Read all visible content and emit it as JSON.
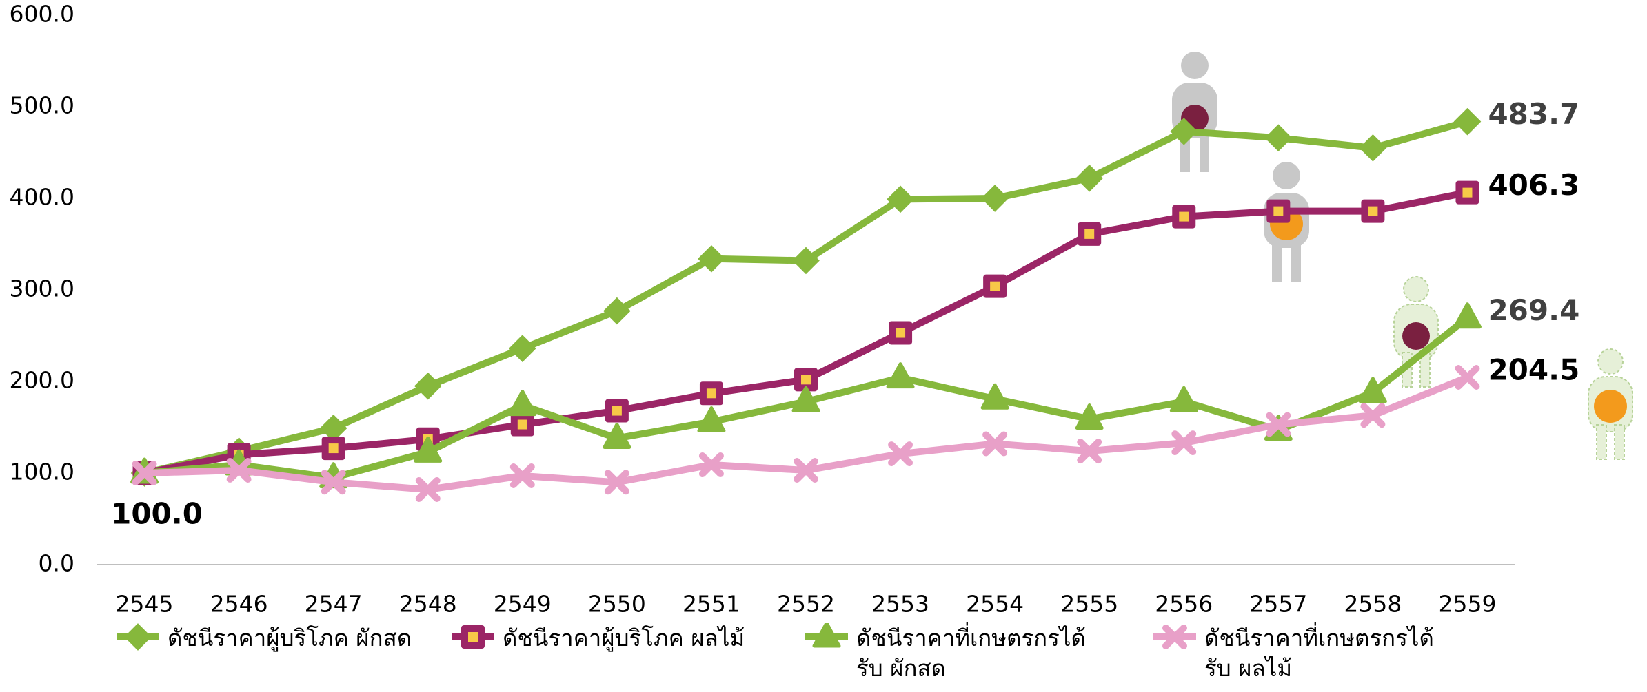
{
  "chart_data": {
    "type": "line",
    "categories": [
      "2545",
      "2546",
      "2547",
      "2548",
      "2549",
      "2550",
      "2551",
      "2552",
      "2553",
      "2554",
      "2555",
      "2556",
      "2557",
      "2558",
      "2559"
    ],
    "ylim": [
      0,
      600
    ],
    "yticks": [
      {
        "value": 0,
        "label": "0.0"
      },
      {
        "value": 100,
        "label": "100.0"
      },
      {
        "value": 200,
        "label": "200.0"
      },
      {
        "value": 300,
        "label": "300.0"
      },
      {
        "value": 400,
        "label": "400.0"
      },
      {
        "value": 500,
        "label": "500.0"
      },
      {
        "value": 600,
        "label": "600.0"
      }
    ],
    "grid": false,
    "legend": "bottom",
    "series": [
      {
        "name": "ดัชนีราคาผู้บริโภค ผักสด",
        "color": "#86b83c",
        "marker": "diamond",
        "values": [
          100,
          124,
          149,
          195,
          236,
          277,
          334,
          332,
          399,
          400,
          422,
          473,
          466,
          455,
          483.7
        ],
        "value_labels": [
          null,
          null,
          null,
          null,
          null,
          null,
          null,
          null,
          null,
          null,
          null,
          null,
          null,
          null,
          "483.7"
        ],
        "label_color": "#404040"
      },
      {
        "name": "ดัชนีราคาผู้บริโภค ผลไม้",
        "color": "#9b2566",
        "marker": "square",
        "values": [
          100,
          120,
          127,
          137,
          153,
          168,
          187,
          202,
          253,
          304,
          361,
          380,
          386,
          386,
          406.3
        ],
        "value_labels": [
          "100.0",
          null,
          null,
          null,
          null,
          null,
          null,
          null,
          null,
          null,
          null,
          null,
          null,
          null,
          "406.3"
        ],
        "label_color": "#000000"
      },
      {
        "name": "ดัชนีราคาที่เกษตรกรได้รับ ผักสด",
        "color": "#86b83c",
        "marker": "triangle",
        "values": [
          100,
          109,
          95,
          123,
          174,
          138,
          156,
          178,
          204,
          181,
          159,
          178,
          147,
          188,
          269.4
        ],
        "value_labels": [
          null,
          null,
          null,
          null,
          null,
          null,
          null,
          null,
          null,
          null,
          null,
          null,
          null,
          null,
          "269.4"
        ],
        "label_color": "#404040"
      },
      {
        "name": "ดัชนีราคาที่เกษตรกรได้รับ ผลไม้",
        "color": "#e8a0c8",
        "marker": "x",
        "values": [
          100,
          103,
          90,
          82,
          97,
          90,
          109,
          103,
          121,
          132,
          124,
          133,
          153,
          163,
          204.5
        ],
        "value_labels": [
          null,
          null,
          null,
          null,
          null,
          null,
          null,
          null,
          null,
          null,
          null,
          null,
          null,
          null,
          "204.5"
        ],
        "label_color": "#000000"
      }
    ]
  }
}
